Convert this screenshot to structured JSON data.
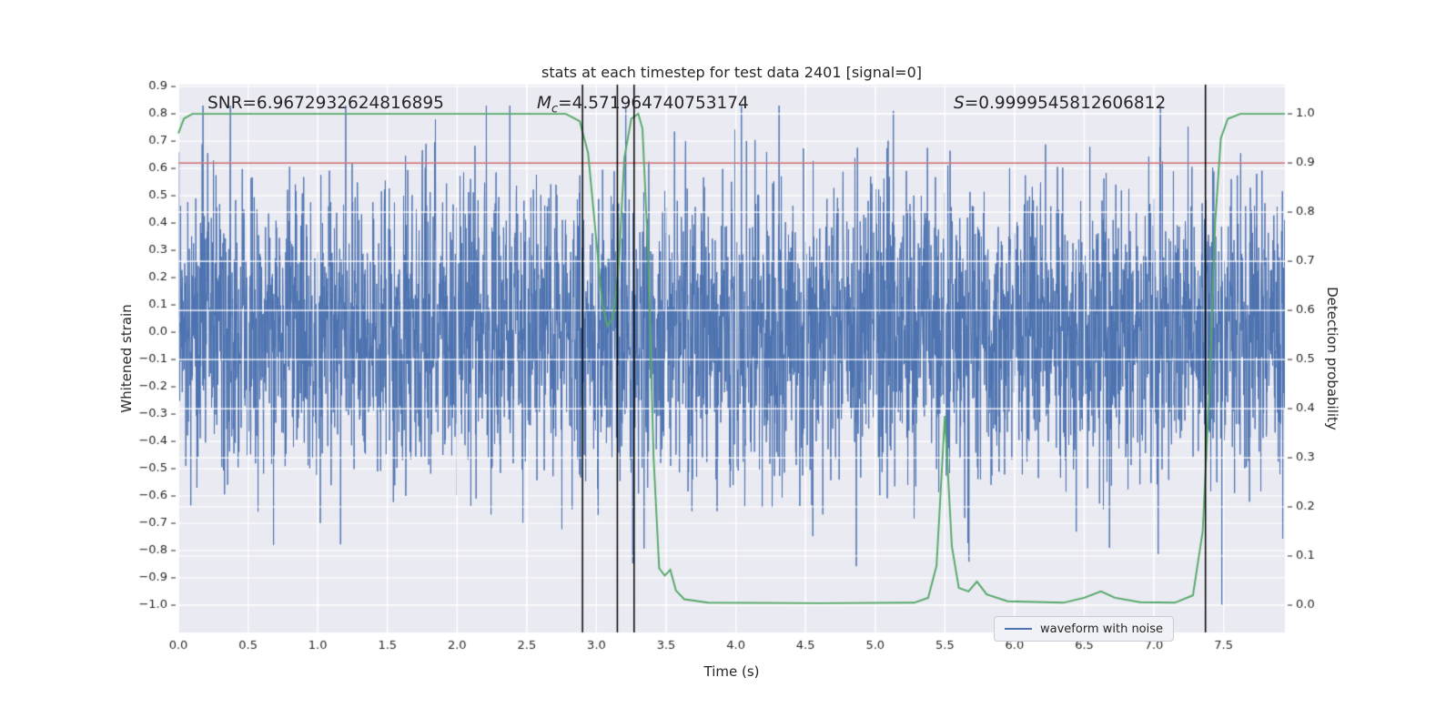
{
  "title": "stats at each timestep for test data 2401 [signal=0]",
  "annotations": {
    "snr": "SNR=6.9672932624816895",
    "mc_symbol": "M",
    "mc_sub": "c",
    "mc_rest": "=4.571964740753174",
    "s_symbol": "S",
    "s_rest": "=0.9999545812606812"
  },
  "legend": {
    "waveform_label": "waveform with noise"
  },
  "chart_data": {
    "type": "line",
    "title": "stats at each timestep for test data 2401 [signal=0]",
    "xlabel": "Time (s)",
    "ylabel_left": "Whitened strain",
    "ylabel_right": "Detection probability",
    "xlim": [
      0,
      7.94
    ],
    "ylim_left": [
      -1.1,
      0.907
    ],
    "right_axis_map": {
      "prob0_left": -1.0,
      "prob1_left": 0.8
    },
    "x_ticks": [
      0.0,
      0.5,
      1.0,
      1.5,
      2.0,
      2.5,
      3.0,
      3.5,
      4.0,
      4.5,
      5.0,
      5.5,
      6.0,
      6.5,
      7.0,
      7.5
    ],
    "y_ticks_left": [
      0.9,
      0.8,
      0.7,
      0.6,
      0.5,
      0.4,
      0.3,
      0.2,
      0.1,
      0.0,
      -0.1,
      -0.2,
      -0.3,
      -0.4,
      -0.5,
      -0.6,
      -0.7,
      -0.8,
      -0.9,
      -1.0
    ],
    "y_ticks_right": [
      1.0,
      0.9,
      0.8,
      0.7,
      0.6,
      0.5,
      0.4,
      0.3,
      0.2,
      0.1,
      0.0
    ],
    "grid": true,
    "colors": {
      "axes_bg": "#eaeaf2",
      "grid": "#ffffff",
      "text": "#262626",
      "waveform": "#4c72b0",
      "probability": "#55a868",
      "threshold": "#c44e52",
      "event_line": "#000000"
    },
    "threshold": {
      "probability": 0.9
    },
    "event_lines": {
      "x": [
        2.9,
        3.15,
        3.27,
        7.37
      ]
    },
    "detection_probability": {
      "points": [
        [
          0.0,
          0.96
        ],
        [
          0.04,
          0.99
        ],
        [
          0.1,
          1.0
        ],
        [
          2.78,
          1.0
        ],
        [
          2.88,
          0.985
        ],
        [
          2.94,
          0.92
        ],
        [
          3.0,
          0.74
        ],
        [
          3.04,
          0.615
        ],
        [
          3.08,
          0.568
        ],
        [
          3.12,
          0.585
        ],
        [
          3.16,
          0.69
        ],
        [
          3.2,
          0.91
        ],
        [
          3.25,
          0.99
        ],
        [
          3.3,
          1.0
        ],
        [
          3.33,
          0.97
        ],
        [
          3.37,
          0.72
        ],
        [
          3.41,
          0.3
        ],
        [
          3.45,
          0.075
        ],
        [
          3.49,
          0.06
        ],
        [
          3.53,
          0.072
        ],
        [
          3.57,
          0.03
        ],
        [
          3.63,
          0.012
        ],
        [
          3.8,
          0.005
        ],
        [
          4.6,
          0.004
        ],
        [
          5.28,
          0.005
        ],
        [
          5.38,
          0.015
        ],
        [
          5.44,
          0.08
        ],
        [
          5.5,
          0.385
        ],
        [
          5.55,
          0.12
        ],
        [
          5.6,
          0.035
        ],
        [
          5.67,
          0.028
        ],
        [
          5.73,
          0.048
        ],
        [
          5.8,
          0.022
        ],
        [
          5.95,
          0.008
        ],
        [
          6.35,
          0.005
        ],
        [
          6.5,
          0.015
        ],
        [
          6.62,
          0.028
        ],
        [
          6.72,
          0.015
        ],
        [
          6.9,
          0.006
        ],
        [
          7.15,
          0.005
        ],
        [
          7.28,
          0.02
        ],
        [
          7.35,
          0.15
        ],
        [
          7.4,
          0.45
        ],
        [
          7.44,
          0.78
        ],
        [
          7.48,
          0.95
        ],
        [
          7.53,
          0.99
        ],
        [
          7.62,
          1.0
        ],
        [
          7.94,
          1.0
        ]
      ]
    },
    "waveform": {
      "label": "waveform with noise",
      "seed": 2401,
      "n_samples": 4000,
      "sigma": 0.27,
      "clip": [
        -1.0,
        0.83
      ]
    }
  }
}
